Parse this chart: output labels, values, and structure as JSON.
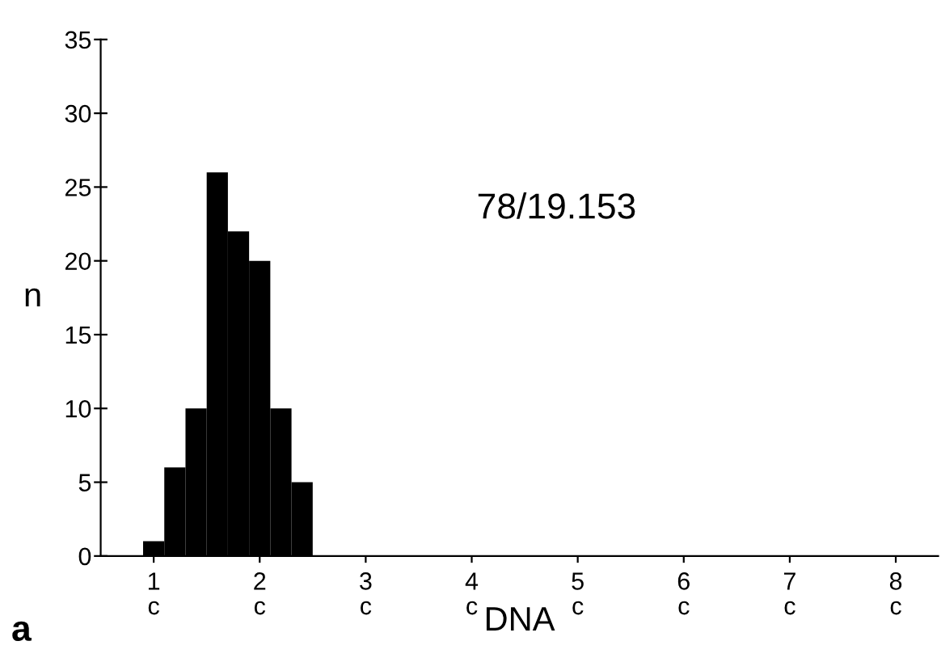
{
  "chart_data": {
    "type": "histogram",
    "xlabel": "DNA",
    "ylabel": "n",
    "bins": [
      0.9,
      1.1,
      1.3,
      1.5,
      1.7,
      1.9,
      2.1,
      2.3,
      2.5
    ],
    "values": [
      1,
      6,
      10,
      26,
      22,
      20,
      10,
      5
    ],
    "color": "#000000",
    "xlim": [
      0.5,
      8.4
    ],
    "xticks": [
      {
        "value": 1,
        "label": "1\nc"
      },
      {
        "value": 2,
        "label": "2\nc"
      },
      {
        "value": 3,
        "label": "3\nc"
      },
      {
        "value": 4,
        "label": "4\nc"
      },
      {
        "value": 5,
        "label": "5\nc"
      },
      {
        "value": 6,
        "label": "6\nc"
      },
      {
        "value": 7,
        "label": "7\nc"
      },
      {
        "value": 8,
        "label": "8\nc"
      }
    ],
    "ylim": [
      0,
      35
    ],
    "yticks": [
      0,
      5,
      10,
      15,
      20,
      25,
      30,
      35
    ],
    "grid": false,
    "annotations": [
      "78/19.153",
      "a"
    ]
  }
}
